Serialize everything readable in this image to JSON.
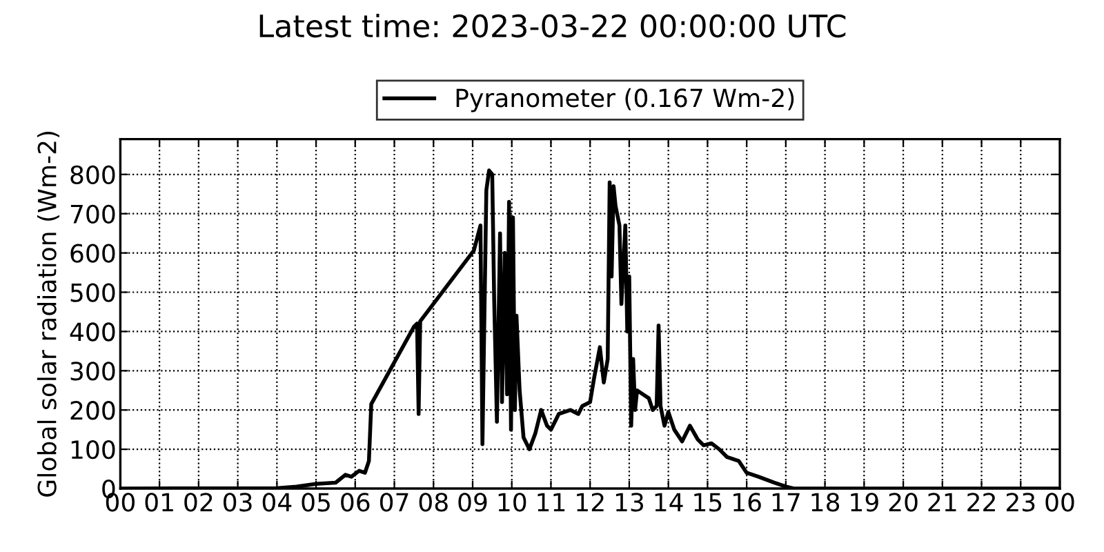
{
  "chart_data": {
    "type": "line",
    "title": "Latest time: 2023-03-22 00:00:00 UTC",
    "ylabel": "Global solar radiation (Wm-2)",
    "legend": "top",
    "grid": true,
    "line_style": "solid",
    "marker": "none",
    "xlim": [
      0,
      24
    ],
    "xticks": [
      {
        "value": 0,
        "label": "00"
      },
      {
        "value": 1,
        "label": "01"
      },
      {
        "value": 2,
        "label": "02"
      },
      {
        "value": 3,
        "label": "03"
      },
      {
        "value": 4,
        "label": "04"
      },
      {
        "value": 5,
        "label": "05"
      },
      {
        "value": 6,
        "label": "06"
      },
      {
        "value": 7,
        "label": "07"
      },
      {
        "value": 8,
        "label": "08"
      },
      {
        "value": 9,
        "label": "09"
      },
      {
        "value": 10,
        "label": "10"
      },
      {
        "value": 11,
        "label": "11"
      },
      {
        "value": 12,
        "label": "12"
      },
      {
        "value": 13,
        "label": "13"
      },
      {
        "value": 14,
        "label": "14"
      },
      {
        "value": 15,
        "label": "15"
      },
      {
        "value": 16,
        "label": "16"
      },
      {
        "value": 17,
        "label": "17"
      },
      {
        "value": 18,
        "label": "18"
      },
      {
        "value": 19,
        "label": "19"
      },
      {
        "value": 20,
        "label": "20"
      },
      {
        "value": 21,
        "label": "21"
      },
      {
        "value": 22,
        "label": "22"
      },
      {
        "value": 23,
        "label": "23"
      },
      {
        "value": 24,
        "label": "00"
      }
    ],
    "ylim": [
      0,
      890
    ],
    "yticks": [
      0,
      100,
      200,
      300,
      400,
      500,
      600,
      700,
      800
    ],
    "series": [
      {
        "name": "Pyranometer (0.167 Wm-2)",
        "color": "#000000",
        "x": [
          0,
          4.0,
          4.5,
          5.0,
          5.5,
          5.75,
          5.9,
          6.1,
          6.25,
          6.35,
          6.41,
          7.5,
          7.58,
          7.62,
          7.66,
          9.03,
          9.2,
          9.25,
          9.35,
          9.42,
          9.5,
          9.55,
          9.62,
          9.7,
          9.75,
          9.82,
          9.88,
          9.93,
          9.98,
          10.03,
          10.08,
          10.12,
          10.2,
          10.3,
          10.45,
          10.6,
          10.75,
          10.9,
          11.0,
          11.2,
          11.5,
          11.7,
          11.8,
          12.0,
          12.1,
          12.25,
          12.35,
          12.45,
          12.5,
          12.55,
          12.6,
          12.65,
          12.75,
          12.8,
          12.9,
          12.95,
          13.0,
          13.05,
          13.1,
          13.15,
          13.2,
          13.35,
          13.5,
          13.6,
          13.7,
          13.75,
          13.8,
          13.9,
          14.0,
          14.15,
          14.35,
          14.55,
          14.75,
          14.9,
          15.1,
          15.3,
          15.5,
          15.8,
          16.0,
          16.3,
          16.7,
          17.0,
          17.2,
          24
        ],
        "values": [
          0,
          1,
          5,
          12,
          15,
          35,
          30,
          45,
          40,
          70,
          215,
          412,
          420,
          190,
          426,
          606,
          670,
          113,
          760,
          810,
          800,
          480,
          170,
          650,
          220,
          600,
          240,
          730,
          150,
          690,
          200,
          440,
          250,
          130,
          100,
          140,
          200,
          160,
          150,
          190,
          200,
          190,
          210,
          220,
          280,
          360,
          270,
          330,
          780,
          540,
          770,
          720,
          670,
          470,
          670,
          400,
          540,
          160,
          330,
          200,
          250,
          240,
          230,
          200,
          210,
          415,
          210,
          160,
          195,
          150,
          120,
          160,
          125,
          110,
          115,
          100,
          80,
          70,
          40,
          30,
          15,
          5,
          0,
          0
        ]
      }
    ]
  }
}
